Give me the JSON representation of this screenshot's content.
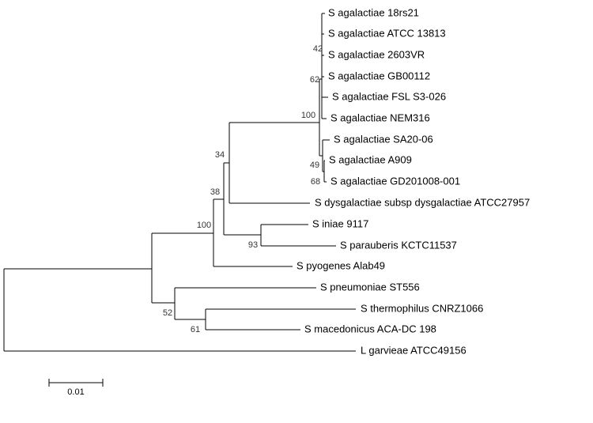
{
  "leaves": [
    "S agalactiae 18rs21",
    "S agalactiae ATCC 13813",
    "S agalactiae 2603VR",
    "S agalactiae GB00112",
    "S agalactiae FSL S3-026",
    "S agalactiae NEM316",
    "S agalactiae SA20-06",
    "S agalactiae A909",
    "S agalactiae GD201008-001",
    "S dysgalactiae subsp dysgalactiae ATCC27957",
    "S iniae 9117",
    "S parauberis KCTC11537",
    "S pyogenes Alab49",
    "S pneumoniae ST556",
    "S thermophilus CNRZ1066",
    "S macedonicus ACA-DC 198",
    "L garvieae ATCC49156"
  ],
  "bootstrap": [
    42,
    62,
    100,
    49,
    68,
    34,
    38,
    93,
    100,
    52,
    61
  ],
  "scale_bar": "0.01"
}
